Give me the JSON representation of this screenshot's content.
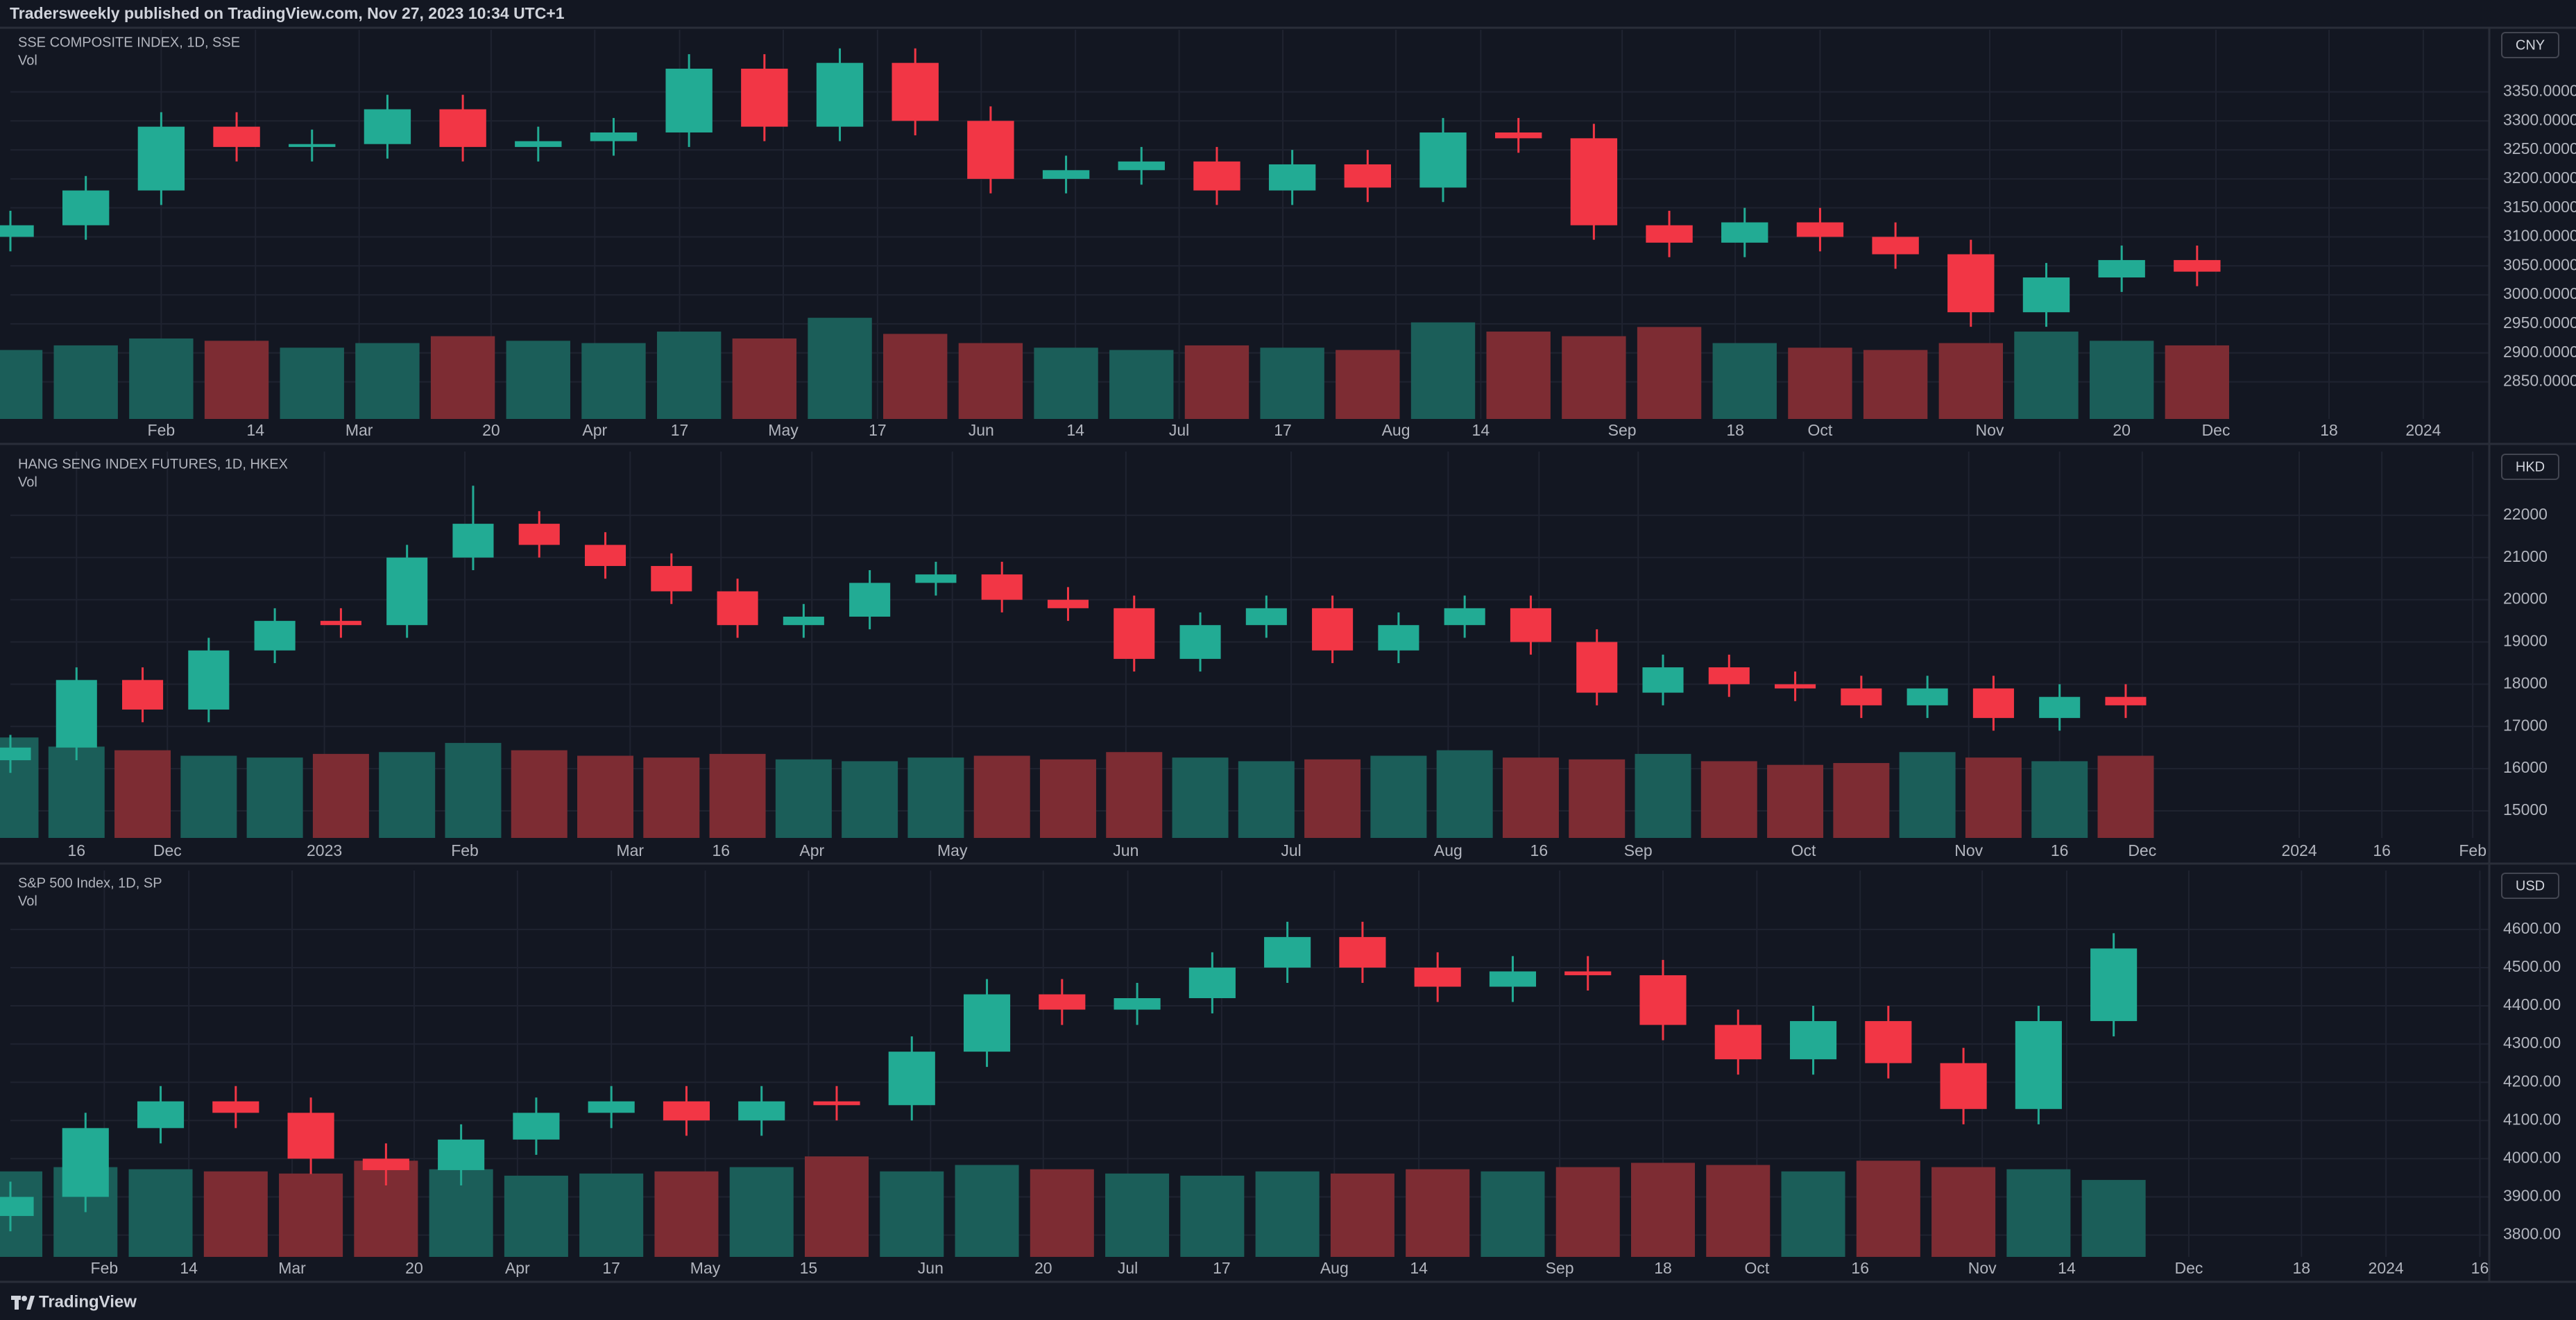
{
  "header": {
    "text": "Tradersweekly published on TradingView.com, Nov 27, 2023 10:34 UTC+1"
  },
  "footer": {
    "brand": "TradingView"
  },
  "chart_data": [
    {
      "type": "candlestick",
      "title": "SSE COMPOSITE INDEX, 1D, SSE",
      "indicator": "Vol",
      "currency": "CNY",
      "up_color": "#22ab94",
      "down_color": "#f23645",
      "up_volume_color": "#1b5e59",
      "down_volume_color": "#7d2c33",
      "grid": true,
      "x": [
        0,
        8,
        16,
        24,
        32,
        40,
        48,
        56,
        64,
        72,
        80,
        88,
        96,
        104,
        112,
        120,
        128,
        136,
        144,
        152,
        160,
        168,
        176,
        184,
        192,
        200,
        208,
        216,
        224,
        232
      ],
      "open": [
        3100,
        3120,
        3180,
        3290,
        3255,
        3260,
        3320,
        3255,
        3265,
        3280,
        3390,
        3290,
        3400,
        3300,
        3200,
        3215,
        3230,
        3180,
        3225,
        3185,
        3280,
        3270,
        3120,
        3090,
        3125,
        3100,
        3070,
        2970,
        3030,
        3060
      ],
      "high": [
        3145,
        3205,
        3315,
        3315,
        3285,
        3345,
        3345,
        3290,
        3305,
        3415,
        3415,
        3425,
        3425,
        3325,
        3240,
        3255,
        3255,
        3250,
        3250,
        3305,
        3305,
        3295,
        3145,
        3150,
        3150,
        3125,
        3095,
        3055,
        3085,
        3085
      ],
      "low": [
        3075,
        3095,
        3155,
        3230,
        3230,
        3235,
        3230,
        3230,
        3240,
        3255,
        3265,
        3265,
        3275,
        3175,
        3175,
        3190,
        3155,
        3155,
        3160,
        3160,
        3245,
        3095,
        3065,
        3065,
        3075,
        3045,
        2945,
        2945,
        3005,
        3015
      ],
      "close": [
        3120,
        3180,
        3290,
        3255,
        3260,
        3320,
        3255,
        3265,
        3280,
        3390,
        3290,
        3400,
        3300,
        3200,
        3215,
        3230,
        3180,
        3225,
        3185,
        3280,
        3270,
        3120,
        3090,
        3125,
        3100,
        3070,
        2970,
        3030,
        3060,
        3040
      ],
      "volume": [
        30,
        32,
        35,
        34,
        31,
        33,
        36,
        34,
        33,
        38,
        35,
        44,
        37,
        33,
        31,
        30,
        32,
        31,
        30,
        42,
        38,
        36,
        40,
        33,
        31,
        30,
        33,
        38,
        34,
        32
      ],
      "xlim": [
        0,
        263
      ],
      "ylim": [
        2786,
        3457
      ],
      "xticks": [
        {
          "value": 16,
          "label": "Feb"
        },
        {
          "value": 26,
          "label": "14"
        },
        {
          "value": 37,
          "label": "Mar"
        },
        {
          "value": 51,
          "label": "20"
        },
        {
          "value": 62,
          "label": "Apr"
        },
        {
          "value": 71,
          "label": "17"
        },
        {
          "value": 82,
          "label": "May"
        },
        {
          "value": 92,
          "label": "17"
        },
        {
          "value": 103,
          "label": "Jun"
        },
        {
          "value": 113,
          "label": "14"
        },
        {
          "value": 124,
          "label": "Jul"
        },
        {
          "value": 135,
          "label": "17"
        },
        {
          "value": 147,
          "label": "Aug"
        },
        {
          "value": 156,
          "label": "14"
        },
        {
          "value": 171,
          "label": "Sep"
        },
        {
          "value": 183,
          "label": "18"
        },
        {
          "value": 192,
          "label": "Oct"
        },
        {
          "value": 210,
          "label": "Nov"
        },
        {
          "value": 224,
          "label": "20"
        },
        {
          "value": 234,
          "label": "Dec"
        },
        {
          "value": 246,
          "label": "18"
        },
        {
          "value": 256,
          "label": "2024"
        }
      ],
      "yticks": [
        {
          "value": 2850,
          "label": "2850.0000"
        },
        {
          "value": 2900,
          "label": "2900.0000"
        },
        {
          "value": 2950,
          "label": "2950.0000"
        },
        {
          "value": 3000,
          "label": "3000.0000"
        },
        {
          "value": 3050,
          "label": "3050.0000"
        },
        {
          "value": 3100,
          "label": "3100.0000"
        },
        {
          "value": 3150,
          "label": "3150.0000"
        },
        {
          "value": 3200,
          "label": "3200.0000"
        },
        {
          "value": 3250,
          "label": "3250.0000"
        },
        {
          "value": 3300,
          "label": "3300.0000"
        },
        {
          "value": 3350,
          "label": "3350.0000"
        }
      ]
    },
    {
      "type": "candlestick",
      "title": "HANG SENG INDEX FUTURES, 1D, HKEX",
      "indicator": "Vol",
      "currency": "HKD",
      "up_color": "#22ab94",
      "down_color": "#f23645",
      "up_volume_color": "#1b5e59",
      "down_volume_color": "#7d2c33",
      "grid": true,
      "x": [
        0,
        8,
        16,
        24,
        32,
        40,
        48,
        56,
        64,
        72,
        80,
        88,
        96,
        104,
        112,
        120,
        128,
        136,
        144,
        152,
        160,
        168,
        176,
        184,
        192,
        200,
        208,
        216,
        224,
        232,
        240,
        248,
        256
      ],
      "open": [
        16200,
        16500,
        18100,
        17400,
        18800,
        19500,
        19400,
        21000,
        21800,
        21300,
        20800,
        20200,
        19400,
        19600,
        20400,
        20600,
        20000,
        19800,
        18600,
        19400,
        19800,
        18800,
        19400,
        19800,
        19000,
        17800,
        18400,
        18000,
        17900,
        17500,
        17900,
        17200,
        17700
      ],
      "high": [
        16800,
        18400,
        18400,
        19100,
        19800,
        19800,
        21300,
        22700,
        22100,
        21600,
        21100,
        20500,
        19900,
        20700,
        20900,
        20900,
        20300,
        20100,
        19700,
        20100,
        20100,
        19700,
        20100,
        20100,
        19300,
        18700,
        18700,
        18300,
        18200,
        18200,
        18200,
        18000,
        18000
      ],
      "low": [
        15900,
        16200,
        17100,
        17100,
        18500,
        19100,
        19100,
        20700,
        21000,
        20500,
        19900,
        19100,
        19100,
        19300,
        20100,
        19700,
        19500,
        18300,
        18300,
        19100,
        18500,
        18500,
        19100,
        18700,
        17500,
        17500,
        17700,
        17600,
        17200,
        17200,
        16900,
        16900,
        17200
      ],
      "close": [
        16500,
        18100,
        17400,
        18800,
        19500,
        19400,
        21000,
        21800,
        21300,
        20800,
        20200,
        19400,
        19600,
        20400,
        20600,
        20000,
        19800,
        18600,
        19400,
        19800,
        18800,
        19400,
        19800,
        19000,
        17800,
        18400,
        18000,
        17900,
        17500,
        17900,
        17200,
        17700,
        17500
      ],
      "volume": [
        55,
        50,
        48,
        45,
        44,
        46,
        47,
        52,
        48,
        45,
        44,
        46,
        43,
        42,
        44,
        45,
        43,
        47,
        44,
        42,
        43,
        45,
        48,
        44,
        43,
        46,
        42,
        40,
        41,
        47,
        44,
        42,
        45
      ],
      "xlim": [
        0,
        300
      ],
      "ylim": [
        14360,
        23510
      ],
      "xticks": [
        {
          "value": 8,
          "label": "16"
        },
        {
          "value": 19,
          "label": "Dec"
        },
        {
          "value": 38,
          "label": "2023"
        },
        {
          "value": 55,
          "label": "Feb"
        },
        {
          "value": 75,
          "label": "Mar"
        },
        {
          "value": 86,
          "label": "16"
        },
        {
          "value": 97,
          "label": "Apr"
        },
        {
          "value": 114,
          "label": "May"
        },
        {
          "value": 135,
          "label": "Jun"
        },
        {
          "value": 155,
          "label": "Jul"
        },
        {
          "value": 174,
          "label": "Aug"
        },
        {
          "value": 185,
          "label": "16"
        },
        {
          "value": 197,
          "label": "Sep"
        },
        {
          "value": 217,
          "label": "Oct"
        },
        {
          "value": 237,
          "label": "Nov"
        },
        {
          "value": 248,
          "label": "16"
        },
        {
          "value": 258,
          "label": "Dec"
        },
        {
          "value": 277,
          "label": "2024"
        },
        {
          "value": 287,
          "label": "16"
        },
        {
          "value": 298,
          "label": "Feb"
        }
      ],
      "yticks": [
        15000,
        16000,
        17000,
        18000,
        19000,
        20000,
        21000,
        22000
      ]
    },
    {
      "type": "candlestick",
      "title": "S&P 500 Index, 1D, SP",
      "indicator": "Vol",
      "currency": "USD",
      "up_color": "#22ab94",
      "down_color": "#f23645",
      "up_volume_color": "#1b5e59",
      "down_volume_color": "#7d2c33",
      "grid": true,
      "x": [
        0,
        8,
        16,
        24,
        32,
        40,
        48,
        56,
        64,
        72,
        80,
        88,
        96,
        104,
        112,
        120,
        128,
        136,
        144,
        152,
        160,
        168,
        176,
        184,
        192,
        200,
        208,
        216,
        224
      ],
      "open": [
        3850,
        3900,
        4080,
        4150,
        4120,
        4000,
        3970,
        4050,
        4120,
        4150,
        4100,
        4150,
        4140,
        4280,
        4430,
        4390,
        4420,
        4500,
        4580,
        4500,
        4450,
        4490,
        4480,
        4350,
        4260,
        4360,
        4250,
        4130,
        4360
      ],
      "high": [
        3940,
        4120,
        4190,
        4190,
        4160,
        4040,
        4090,
        4160,
        4190,
        4190,
        4190,
        4190,
        4320,
        4470,
        4470,
        4460,
        4540,
        4620,
        4620,
        4540,
        4530,
        4530,
        4520,
        4390,
        4400,
        4400,
        4290,
        4400,
        4590
      ],
      "low": [
        3810,
        3860,
        4040,
        4080,
        3960,
        3930,
        3930,
        4010,
        4080,
        4060,
        4060,
        4100,
        4100,
        4240,
        4350,
        4350,
        4380,
        4460,
        4460,
        4410,
        4410,
        4440,
        4310,
        4220,
        4220,
        4210,
        4090,
        4090,
        4320
      ],
      "close": [
        3900,
        4080,
        4150,
        4120,
        4000,
        3970,
        4050,
        4120,
        4150,
        4100,
        4150,
        4140,
        4280,
        4430,
        4390,
        4420,
        4500,
        4580,
        4500,
        4450,
        4490,
        4480,
        4350,
        4260,
        4360,
        4250,
        4130,
        4360,
        4550
      ],
      "volume": [
        40,
        42,
        41,
        40,
        39,
        45,
        41,
        38,
        39,
        40,
        42,
        47,
        40,
        43,
        41,
        39,
        38,
        40,
        39,
        41,
        40,
        42,
        44,
        43,
        40,
        45,
        42,
        41,
        36
      ],
      "xlim": [
        0,
        264
      ],
      "ylim": [
        3743,
        4754
      ],
      "xticks": [
        {
          "value": 10,
          "label": "Feb"
        },
        {
          "value": 19,
          "label": "14"
        },
        {
          "value": 30,
          "label": "Mar"
        },
        {
          "value": 43,
          "label": "20"
        },
        {
          "value": 54,
          "label": "Apr"
        },
        {
          "value": 64,
          "label": "17"
        },
        {
          "value": 74,
          "label": "May"
        },
        {
          "value": 85,
          "label": "15"
        },
        {
          "value": 98,
          "label": "Jun"
        },
        {
          "value": 110,
          "label": "20"
        },
        {
          "value": 119,
          "label": "Jul"
        },
        {
          "value": 129,
          "label": "17"
        },
        {
          "value": 141,
          "label": "Aug"
        },
        {
          "value": 150,
          "label": "14"
        },
        {
          "value": 165,
          "label": "Sep"
        },
        {
          "value": 176,
          "label": "18"
        },
        {
          "value": 186,
          "label": "Oct"
        },
        {
          "value": 197,
          "label": "16"
        },
        {
          "value": 210,
          "label": "Nov"
        },
        {
          "value": 219,
          "label": "14"
        },
        {
          "value": 232,
          "label": "Dec"
        },
        {
          "value": 244,
          "label": "18"
        },
        {
          "value": 253,
          "label": "2024"
        },
        {
          "value": 263,
          "label": "16"
        }
      ],
      "yticks": [
        {
          "value": 3800,
          "label": "3800.00"
        },
        {
          "value": 3900,
          "label": "3900.00"
        },
        {
          "value": 4000,
          "label": "4000.00"
        },
        {
          "value": 4100,
          "label": "4100.00"
        },
        {
          "value": 4200,
          "label": "4200.00"
        },
        {
          "value": 4300,
          "label": "4300.00"
        },
        {
          "value": 4400,
          "label": "4400.00"
        },
        {
          "value": 4500,
          "label": "4500.00"
        },
        {
          "value": 4600,
          "label": "4600.00"
        }
      ]
    }
  ]
}
